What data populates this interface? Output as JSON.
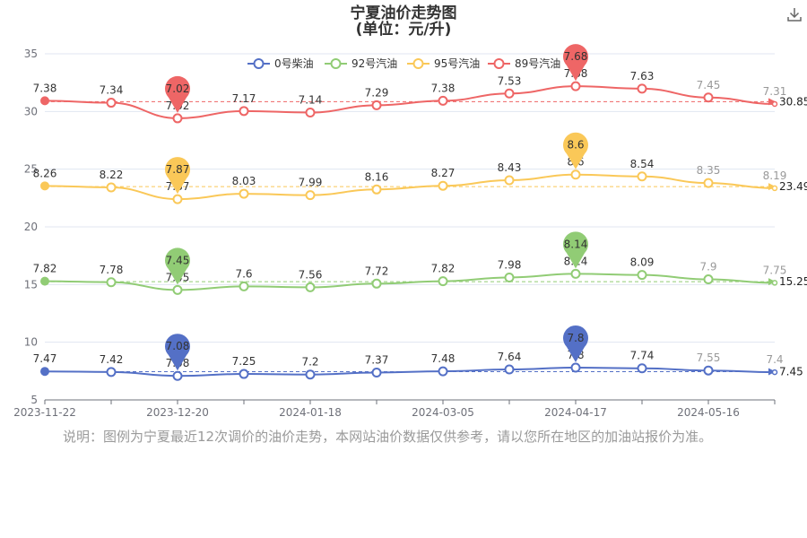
{
  "chart_data": {
    "type": "line",
    "title": "宁夏油价走势图",
    "subtitle": "(单位：元/升)",
    "y_ticks": [
      "5",
      "10",
      "15",
      "20",
      "25",
      "30",
      "35"
    ],
    "ylim": [
      5,
      35
    ],
    "x_ticks": [
      "2023-11-22",
      "2023-12-20",
      "2024-01-18",
      "2024-03-05",
      "2024-04-17",
      "2024-05-16"
    ],
    "x_tick_index": [
      0,
      2,
      4,
      6,
      8,
      10
    ],
    "legend_position": "top",
    "series": [
      {
        "name": "0号柴油",
        "color": "#5470c6",
        "labels": [
          7.47,
          7.42,
          7.08,
          7.25,
          7.2,
          7.37,
          7.48,
          7.64,
          7.8,
          7.74,
          7.55,
          7.4
        ],
        "plot_values": [
          7.47,
          7.42,
          7.08,
          7.25,
          7.2,
          7.37,
          7.48,
          7.64,
          7.8,
          7.74,
          7.55,
          7.4
        ],
        "min_marker": "7.08",
        "max_marker": "7.8",
        "average": "7.45"
      },
      {
        "name": "92号汽油",
        "color": "#91cc75",
        "labels": [
          7.82,
          7.78,
          7.45,
          7.6,
          7.56,
          7.72,
          7.82,
          7.98,
          8.14,
          8.09,
          7.9,
          7.75
        ],
        "plot_values": [
          15.29,
          15.2,
          14.53,
          14.84,
          14.76,
          15.08,
          15.29,
          15.61,
          15.93,
          15.83,
          15.45,
          15.15
        ],
        "min_marker": "7.45",
        "max_marker": "8.14",
        "average": "15.25"
      },
      {
        "name": "95号汽油",
        "color": "#fac858",
        "labels": [
          8.26,
          8.22,
          7.87,
          8.03,
          7.99,
          8.16,
          8.27,
          8.43,
          8.6,
          8.54,
          8.35,
          8.19
        ],
        "plot_values": [
          23.55,
          23.42,
          22.4,
          22.87,
          22.75,
          23.24,
          23.56,
          24.04,
          24.53,
          24.37,
          23.8,
          23.35
        ],
        "min_marker": "7.87",
        "max_marker": "8.6",
        "average": "23.49"
      },
      {
        "name": "89号汽油",
        "color": "#ee6666",
        "labels": [
          7.38,
          7.34,
          7.02,
          7.17,
          7.14,
          7.29,
          7.38,
          7.53,
          7.68,
          7.63,
          7.45,
          7.31
        ],
        "plot_values": [
          30.93,
          30.76,
          29.41,
          30.04,
          29.91,
          30.54,
          30.93,
          31.56,
          32.19,
          31.98,
          31.21,
          30.65
        ],
        "min_marker": "7.02",
        "max_marker": "7.68",
        "average": "30.85"
      }
    ]
  },
  "note": "说明：图例为宁夏最近12次调价的油价走势，本网站油价数据仅供参考，请以您所在地区的加油站报价为准。",
  "toolbar": {
    "download_icon": "download-icon"
  }
}
